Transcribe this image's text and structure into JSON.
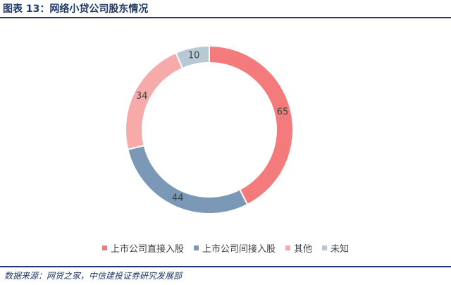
{
  "header": {
    "title": "图表 13：网络小贷公司股东情况"
  },
  "chart_data": {
    "type": "pie",
    "variant": "donut",
    "title": "",
    "series": [
      {
        "name": "上市公司直接入股",
        "value": 65,
        "color": "#f47b7b"
      },
      {
        "name": "上市公司间接入股",
        "value": 44,
        "color": "#7b98b6"
      },
      {
        "name": "其他",
        "value": 34,
        "color": "#f6aaaa"
      },
      {
        "name": "未知",
        "value": 10,
        "color": "#b8c9d6"
      }
    ],
    "legend_position": "bottom"
  },
  "footer": {
    "source": "数据来源：网贷之家，中信建投证券研究发展部"
  }
}
